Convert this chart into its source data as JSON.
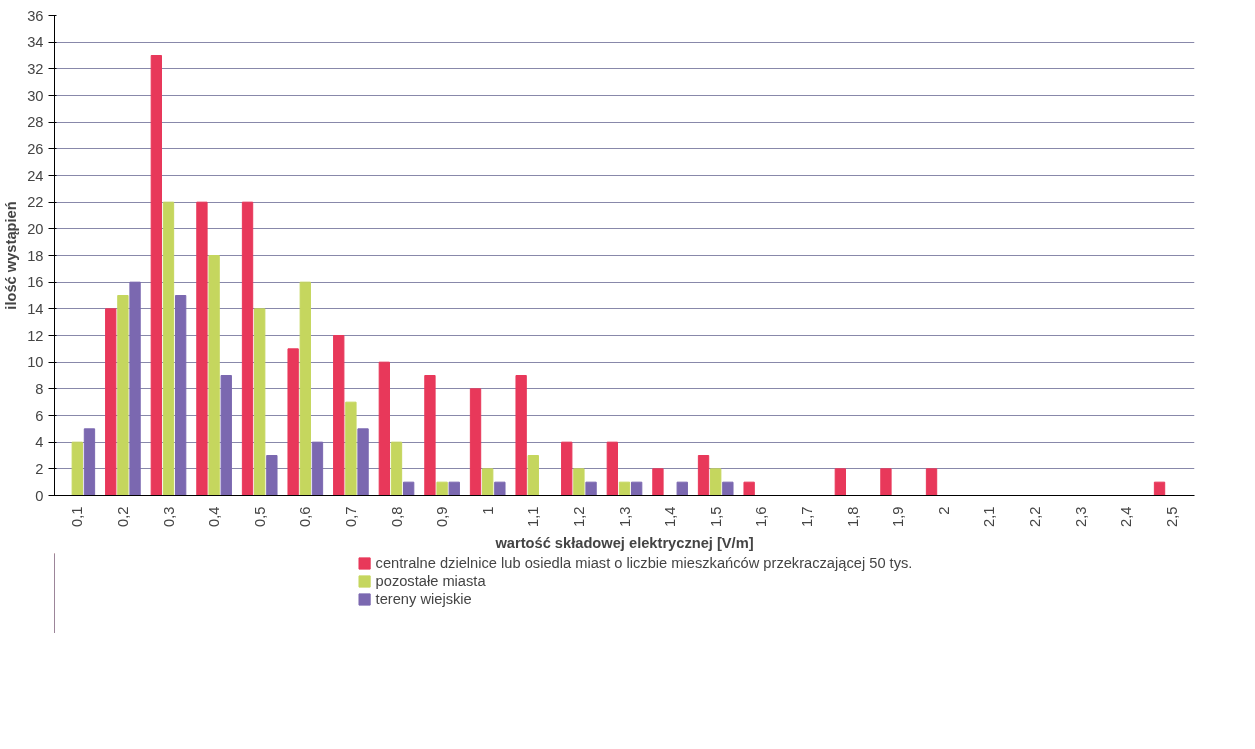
{
  "chart_data": {
    "type": "bar",
    "xlabel": "wartość składowej elektrycznej [V/m]",
    "ylabel": "ilość wystąpień",
    "categories": [
      "0,1",
      "0,2",
      "0,3",
      "0,4",
      "0,5",
      "0,6",
      "0,7",
      "0,8",
      "0,9",
      "1",
      "1,1",
      "1,2",
      "1,3",
      "1,4",
      "1,5",
      "1,6",
      "1,7",
      "1,8",
      "1,9",
      "2",
      "2,1",
      "2,2",
      "2,3",
      "2,4",
      "2,5"
    ],
    "series": [
      {
        "name": "centralne dzielnice lub osiedla miast o liczbie mieszkańców przekraczającej 50 tys.",
        "color": "#e8385a",
        "values": [
          0,
          14,
          33,
          22,
          22,
          11,
          12,
          10,
          9,
          8,
          9,
          4,
          4,
          2,
          3,
          1,
          0,
          2,
          2,
          2,
          0,
          0,
          0,
          0,
          1
        ]
      },
      {
        "name": "pozostałe miasta",
        "color": "#c5d65e",
        "values": [
          4,
          15,
          22,
          18,
          14,
          16,
          7,
          4,
          1,
          2,
          3,
          2,
          1,
          0,
          2,
          0,
          0,
          0,
          0,
          0,
          0,
          0,
          0,
          0,
          0
        ]
      },
      {
        "name": "tereny wiejskie",
        "color": "#7b68b0",
        "values": [
          5,
          16,
          15,
          9,
          3,
          4,
          5,
          1,
          1,
          1,
          0,
          1,
          1,
          1,
          1,
          0,
          0,
          0,
          0,
          0,
          0,
          0,
          0,
          0,
          0
        ]
      }
    ],
    "ylim": [
      0,
      36
    ],
    "yticks": [
      0,
      2,
      4,
      6,
      8,
      10,
      12,
      14,
      16,
      18,
      20,
      22,
      24,
      26,
      28,
      30,
      32,
      34,
      36
    ],
    "grid": "y",
    "legend": "bottom"
  }
}
